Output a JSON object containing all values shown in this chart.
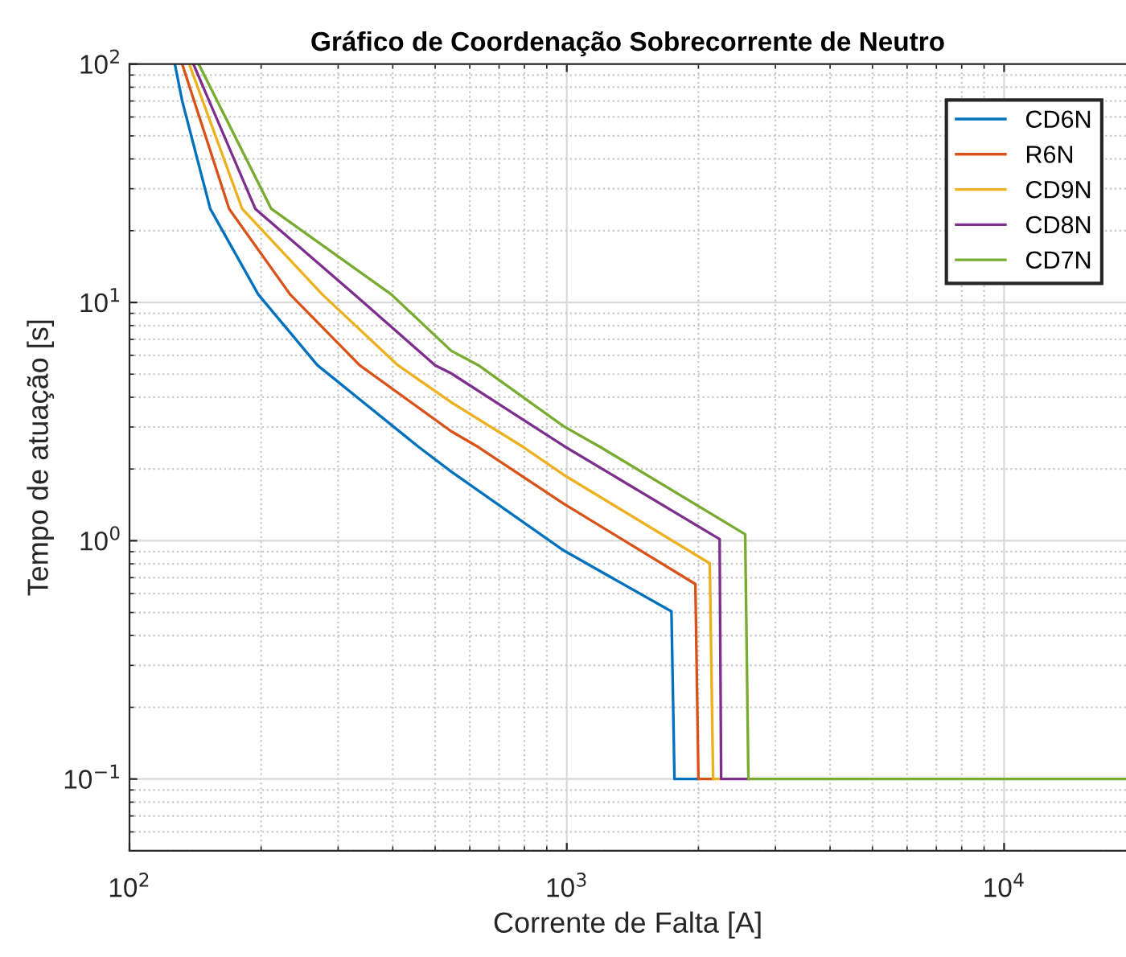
{
  "chart_data": {
    "type": "line",
    "title": "Gráfico de Coordenação Sobrecorrente de Neutro",
    "xlabel": "Corrente de Falta [A]",
    "ylabel": "Tempo de atuação [s]",
    "log": "xy",
    "grid": true,
    "legend": "top right",
    "line_style": "solid",
    "marker": "none",
    "xlim": [
      100,
      19000
    ],
    "xticks": [
      {
        "value": 100,
        "label": "10$^{2}$"
      },
      {
        "value": 1000,
        "label": "10$^{3}$"
      },
      {
        "value": 10000,
        "label": "10$^{4}$"
      }
    ],
    "ylim": [
      0.05,
      100
    ],
    "yticks": [
      {
        "value": 0.1,
        "label": "10$^{−1}$"
      },
      {
        "value": 1,
        "label": "10$^{0}$"
      },
      {
        "value": 10,
        "label": "10$^{1}$"
      },
      {
        "value": 100,
        "label": "10$^{2}$"
      }
    ],
    "series": [
      {
        "name": "CD6N",
        "color": "#0072bd",
        "x": [
          127,
          132,
          153,
          197,
          269,
          459,
          544,
          984,
          1735,
          1763,
          2000
        ],
        "values": [
          100,
          70,
          24.7,
          10.8,
          5.45,
          2.47,
          1.95,
          0.91,
          0.505,
          0.1,
          0.1
        ]
      },
      {
        "name": "R6N",
        "color": "#d95319",
        "x": [
          132,
          169,
          233,
          336,
          544,
          628,
          984,
          1968,
          2000,
          2161
        ],
        "values": [
          100,
          24.7,
          10.8,
          5.45,
          2.88,
          2.47,
          1.43,
          0.658,
          0.1,
          0.1
        ]
      },
      {
        "name": "CD9N",
        "color": "#edb120",
        "x": [
          137,
          181,
          276,
          411,
          544,
          796,
          984,
          2123,
          2161,
          2254
        ],
        "values": [
          100,
          24.7,
          10.8,
          5.45,
          3.81,
          2.47,
          1.89,
          0.804,
          0.1,
          0.1
        ]
      },
      {
        "name": "CD8N",
        "color": "#7e2f8e",
        "x": [
          140,
          194,
          327,
          500,
          544,
          984,
          2236,
          2254,
          2602
        ],
        "values": [
          100,
          24.7,
          10.8,
          5.45,
          5.04,
          2.5,
          1.016,
          0.1,
          0.1
        ]
      },
      {
        "name": "CD7N",
        "color": "#77ac30",
        "x": [
          144,
          211,
          397,
          544,
          628,
          984,
          1194,
          2558,
          2602,
          19000
        ],
        "values": [
          100,
          24.7,
          10.8,
          6.27,
          5.45,
          3.02,
          2.47,
          1.064,
          0.1,
          0.1
        ]
      }
    ]
  }
}
